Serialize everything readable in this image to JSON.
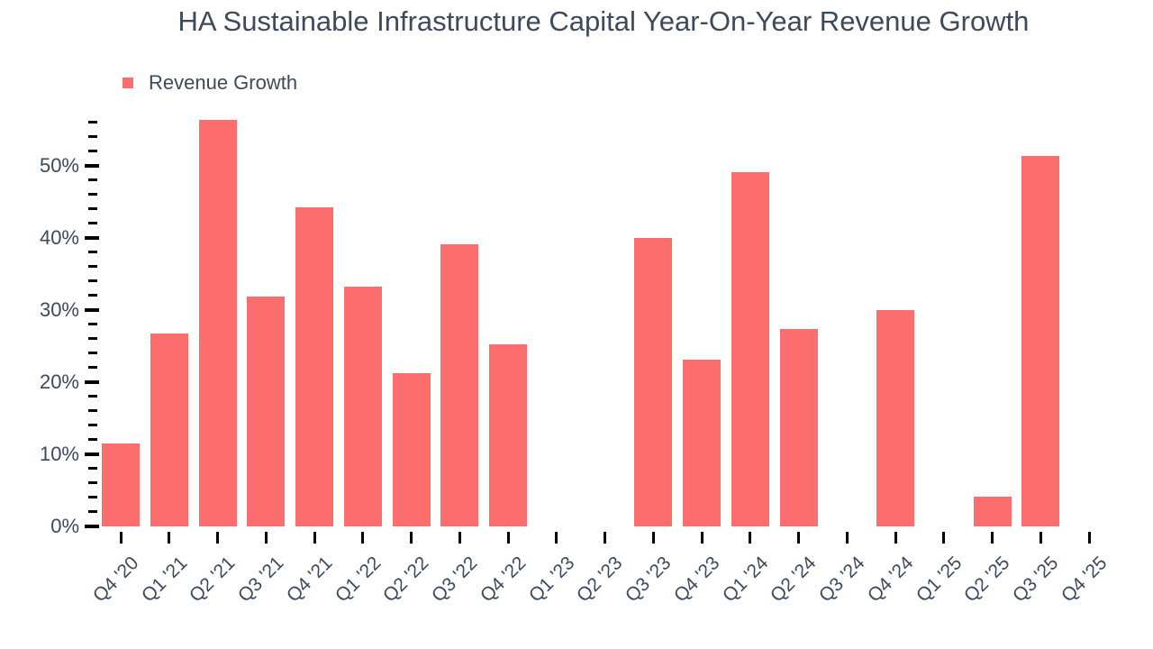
{
  "title": "HA Sustainable Infrastructure Capital Year-On-Year Revenue Growth",
  "legend": {
    "label": "Revenue Growth",
    "color": "#FC6E6E"
  },
  "colors": {
    "bar": "#FC6E6E",
    "text": "#3D4A5C",
    "tick": "#000000"
  },
  "chart_data": {
    "type": "bar",
    "title": "HA Sustainable Infrastructure Capital Year-On-Year Revenue Growth",
    "series_name": "Revenue Growth",
    "categories": [
      "Q4 '20",
      "Q1 '21",
      "Q2 '21",
      "Q3 '21",
      "Q4 '21",
      "Q1 '22",
      "Q2 '22",
      "Q3 '22",
      "Q4 '22",
      "Q1 '23",
      "Q2 '23",
      "Q3 '23",
      "Q4 '23",
      "Q1 '24",
      "Q2 '24",
      "Q3 '24",
      "Q4 '24",
      "Q1 '25",
      "Q2 '25",
      "Q3 '25",
      "Q4 '25"
    ],
    "values": [
      11.5,
      26.8,
      56.4,
      31.9,
      44.2,
      33.2,
      21.2,
      39.1,
      25.2,
      null,
      null,
      40.0,
      23.1,
      49.1,
      27.4,
      null,
      30.0,
      null,
      4.1,
      51.4,
      null
    ],
    "unit": "%",
    "xlabel": "",
    "ylabel": "",
    "y_axis": {
      "tick_labels": [
        "0%",
        "10%",
        "20%",
        "30%",
        "40%",
        "50%"
      ],
      "major_step": 10,
      "minor_step": 2,
      "min": 0,
      "max": 56
    },
    "grid": false,
    "legend_position": "top-left",
    "bar_color": "#FC6E6E",
    "missing_categories": [
      "Q1 '23",
      "Q2 '23",
      "Q3 '24",
      "Q1 '25",
      "Q4 '25"
    ]
  }
}
